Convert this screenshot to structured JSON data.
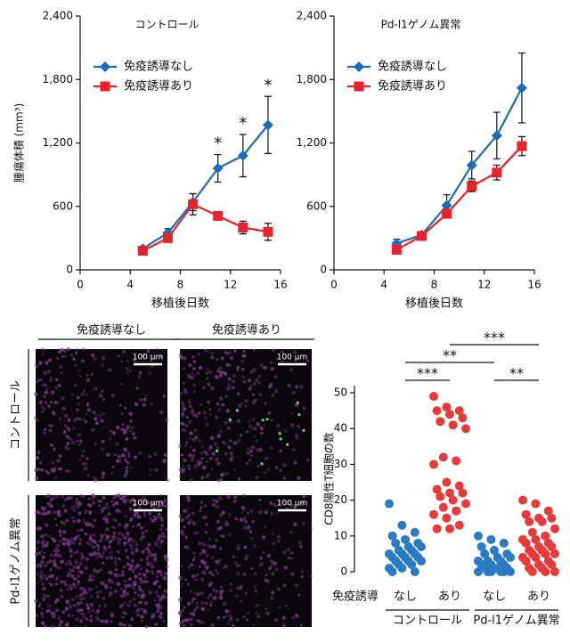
{
  "chart_data": [
    {
      "type": "line",
      "title": "コントロール",
      "xlabel": "移植後日数",
      "ylabel": "腫瘍体積 (mm³)",
      "x": [
        5,
        7,
        9,
        11,
        13,
        15
      ],
      "xlim": [
        0,
        16
      ],
      "xticks": [
        0,
        4,
        8,
        12,
        16
      ],
      "ylim": [
        0,
        2400
      ],
      "yticks": [
        0,
        600,
        {
          "value": 1200,
          "label": "1,200"
        },
        {
          "value": 1800,
          "label": "1,800"
        },
        {
          "value": 2400,
          "label": "2,400"
        }
      ],
      "series": [
        {
          "name": "免疫誘導なし",
          "color": "#1f6bb5",
          "marker": "diamond",
          "values": [
            200,
            350,
            640,
            960,
            1080,
            1370
          ],
          "errors": [
            20,
            40,
            80,
            130,
            200,
            270
          ]
        },
        {
          "name": "免疫誘導あり",
          "color": "#e8222b",
          "marker": "square",
          "values": [
            180,
            300,
            620,
            510,
            400,
            360
          ],
          "errors": [
            20,
            30,
            100,
            20,
            60,
            80
          ]
        }
      ],
      "annotations": [
        {
          "text": "*",
          "x": 11
        },
        {
          "text": "*",
          "x": 13
        },
        {
          "text": "*",
          "x": 15
        }
      ]
    },
    {
      "type": "line",
      "title": "Pd-l1ゲノム異常",
      "xlabel": "移植後日数",
      "x": [
        5,
        7,
        9,
        11,
        13,
        15
      ],
      "xlim": [
        0,
        16
      ],
      "xticks": [
        0,
        4,
        8,
        12,
        16
      ],
      "ylim": [
        0,
        2400
      ],
      "yticks": [
        0,
        600,
        {
          "value": 1200,
          "label": "1,200"
        },
        {
          "value": 1800,
          "label": "1,800"
        },
        {
          "value": 2400,
          "label": "2,400"
        }
      ],
      "series": [
        {
          "name": "免疫誘導なし",
          "color": "#1f6bb5",
          "marker": "diamond",
          "values": [
            250,
            330,
            610,
            990,
            1270,
            1720
          ],
          "errors": [
            40,
            30,
            100,
            130,
            220,
            330
          ]
        },
        {
          "name": "免疫誘導あり",
          "color": "#e8222b",
          "marker": "square",
          "values": [
            190,
            320,
            530,
            790,
            920,
            1170
          ],
          "errors": [
            30,
            30,
            40,
            50,
            70,
            90
          ]
        }
      ]
    },
    {
      "type": "strip",
      "ylabel": "CD8陽性T細胞の数",
      "row_label": "免疫誘導",
      "categories": [
        "なし",
        "あり",
        "なし",
        "あり"
      ],
      "groups": [
        {
          "name": "コントロール",
          "categories": [
            0,
            1
          ]
        },
        {
          "name": "Pd-l1ゲノム異常",
          "categories": [
            2,
            3
          ]
        }
      ],
      "ylim": [
        0,
        52
      ],
      "yticks": [
        0,
        10,
        20,
        30,
        40,
        50
      ],
      "series": [
        {
          "color": "#2b7bc4",
          "values": [
            19,
            13,
            11,
            10,
            9,
            8,
            8,
            7,
            7,
            6,
            6,
            5,
            5,
            5,
            4,
            4,
            4,
            3,
            3,
            3,
            2,
            2,
            1,
            1,
            0,
            0
          ]
        },
        {
          "color": "#e83a3a",
          "values": [
            49,
            46,
            45,
            45,
            44,
            43,
            42,
            41,
            40,
            32,
            31,
            30,
            25,
            24,
            23,
            22,
            22,
            21,
            20,
            19,
            18,
            17,
            16,
            15,
            13,
            12,
            12
          ]
        },
        {
          "color": "#2b7bc4",
          "values": [
            10,
            9,
            8,
            7,
            6,
            5,
            5,
            4,
            4,
            3,
            3,
            3,
            2,
            2,
            2,
            1,
            1,
            1,
            1,
            0,
            0,
            0,
            0,
            0,
            0
          ]
        },
        {
          "color": "#e83a3a",
          "values": [
            20,
            19,
            17,
            16,
            15,
            15,
            14,
            14,
            12,
            11,
            10,
            9,
            9,
            8,
            8,
            7,
            7,
            6,
            6,
            5,
            5,
            5,
            4,
            4,
            3,
            3,
            2,
            2,
            1,
            1,
            0,
            0,
            0
          ]
        }
      ],
      "comparisons": [
        {
          "between": [
            0,
            1
          ],
          "label": "***"
        },
        {
          "between": [
            2,
            3
          ],
          "label": "**"
        },
        {
          "between": [
            0,
            2
          ],
          "label": "**"
        },
        {
          "between": [
            1,
            3
          ],
          "label": "***"
        }
      ]
    }
  ],
  "images": {
    "columns": [
      "免疫誘導なし",
      "免疫誘導あり"
    ],
    "rows": [
      "コントロール",
      "Pd-l1ゲノム異常"
    ],
    "scale_bar": "100 μm"
  }
}
